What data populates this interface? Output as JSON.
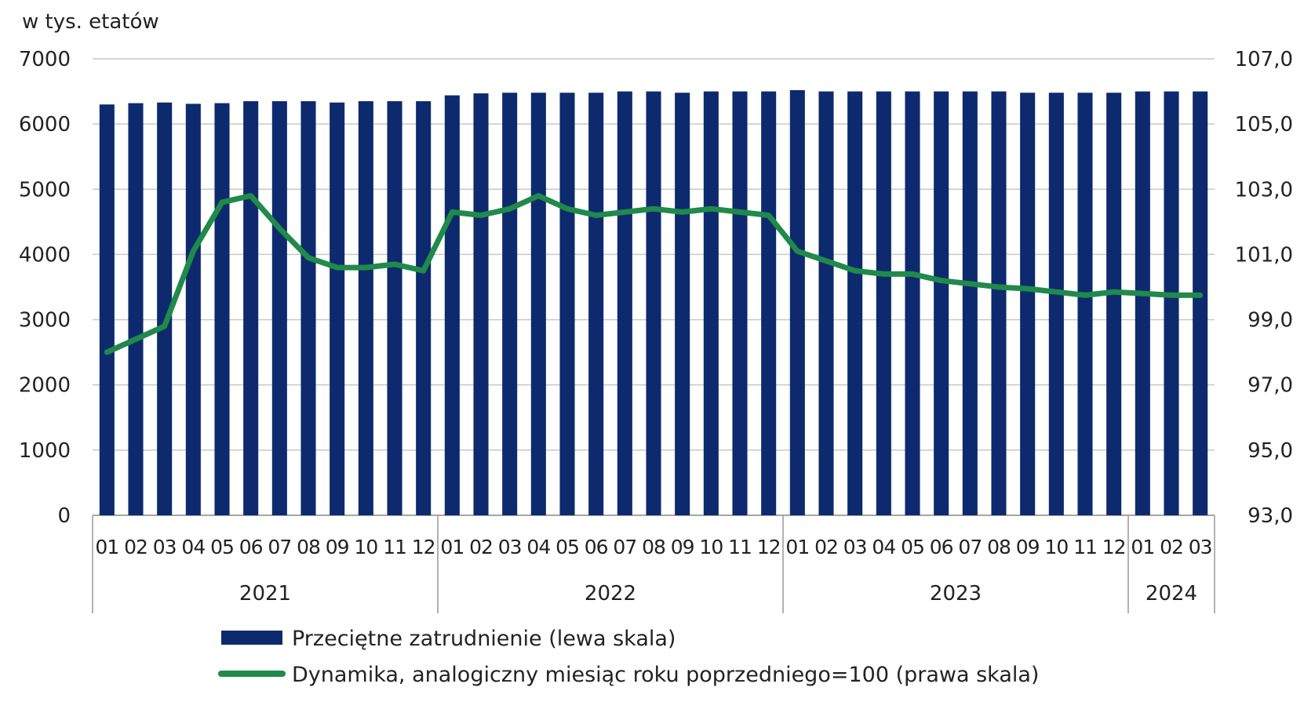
{
  "chart_data": {
    "type": "bar+line",
    "title": "",
    "unit_label": "w tys. etatów",
    "categories": [
      "01",
      "02",
      "03",
      "04",
      "05",
      "06",
      "07",
      "08",
      "09",
      "10",
      "11",
      "12",
      "01",
      "02",
      "03",
      "04",
      "05",
      "06",
      "07",
      "08",
      "09",
      "10",
      "11",
      "12",
      "01",
      "02",
      "03",
      "04",
      "05",
      "06",
      "07",
      "08",
      "09",
      "10",
      "11",
      "12",
      "01",
      "02",
      "03"
    ],
    "year_groups": [
      {
        "label": "2021",
        "count": 12
      },
      {
        "label": "2022",
        "count": 12
      },
      {
        "label": "2023",
        "count": 12
      },
      {
        "label": "2024",
        "count": 3
      }
    ],
    "left_axis": {
      "min": 0,
      "max": 7000,
      "step": 1000,
      "ticks": [
        "0",
        "1000",
        "2000",
        "3000",
        "4000",
        "5000",
        "6000",
        "7000"
      ]
    },
    "right_axis": {
      "min": 93.0,
      "max": 107.0,
      "step": 2.0,
      "ticks": [
        "93,0",
        "95,0",
        "97,0",
        "99,0",
        "101,0",
        "103,0",
        "105,0",
        "107,0"
      ]
    },
    "gridlines": true,
    "legend_position": "bottom",
    "series": [
      {
        "name": "Przeciętne zatrudnienie (lewa skala)",
        "type": "bar",
        "axis": "left",
        "color": "#0d2a6e",
        "values": [
          6300,
          6320,
          6330,
          6310,
          6320,
          6350,
          6350,
          6350,
          6330,
          6350,
          6350,
          6350,
          6440,
          6470,
          6480,
          6480,
          6480,
          6480,
          6500,
          6500,
          6480,
          6500,
          6500,
          6500,
          6520,
          6500,
          6500,
          6500,
          6500,
          6500,
          6500,
          6500,
          6480,
          6480,
          6480,
          6480,
          6500,
          6500,
          6500
        ]
      },
      {
        "name": "Dynamika, analogiczny miesiąc roku poprzedniego=100 (prawa skala)",
        "type": "line",
        "axis": "right",
        "color": "#1f8a4a",
        "values": [
          98.0,
          98.4,
          98.8,
          101.1,
          102.6,
          102.8,
          101.8,
          100.9,
          100.6,
          100.6,
          100.7,
          100.5,
          102.3,
          102.2,
          102.4,
          102.8,
          102.4,
          102.2,
          102.3,
          102.4,
          102.3,
          102.4,
          102.3,
          102.2,
          101.1,
          100.8,
          100.5,
          100.4,
          100.4,
          100.2,
          100.1,
          100.0,
          99.95,
          99.85,
          99.75,
          99.85,
          99.8,
          99.75,
          99.75
        ]
      }
    ]
  }
}
